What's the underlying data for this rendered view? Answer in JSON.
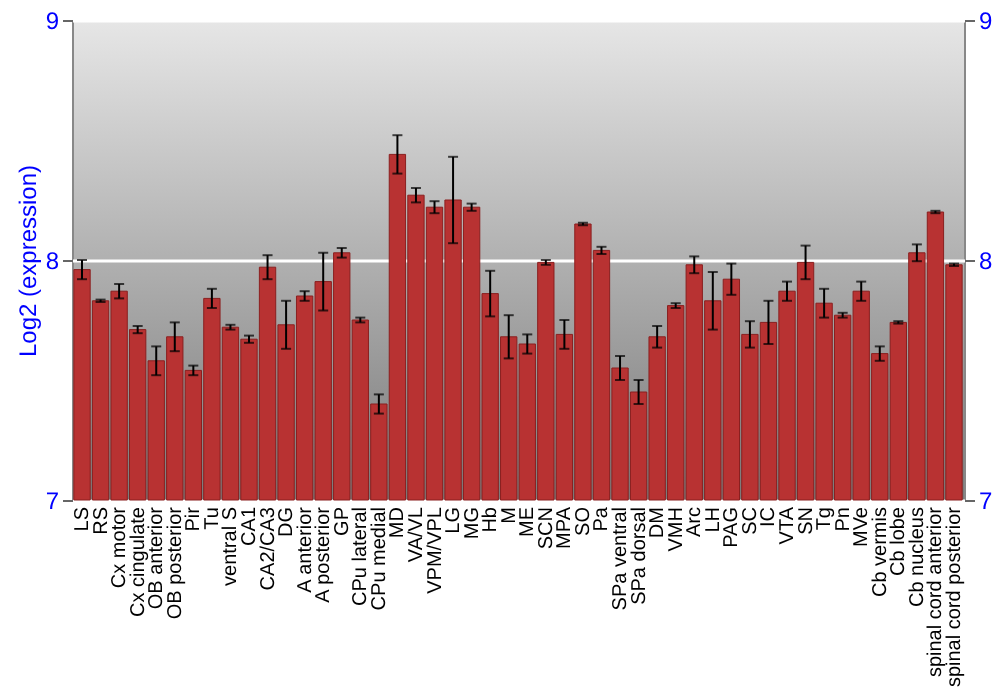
{
  "chart_data": {
    "type": "bar",
    "ylabel": "Log2 (expression)",
    "categories": [
      "LS",
      "RS",
      "Cx motor",
      "Cx cingulate",
      "OB anterior",
      "OB posterior",
      "Pir",
      "Tu",
      "ventral S",
      "CA1",
      "CA2/CA3",
      "DG",
      "A anterior",
      "A posterior",
      "GP",
      "CPu lateral",
      "CPu medial",
      "MD",
      "VA/VL",
      "VPM/VPL",
      "LG",
      "MG",
      "Hb",
      "M",
      "ME",
      "SCN",
      "MPA",
      "SO",
      "Pa",
      "SPa ventral",
      "SPa dorsal",
      "DM",
      "VMH",
      "Arc",
      "LH",
      "PAG",
      "SC",
      "IC",
      "VTA",
      "SN",
      "Tg",
      "Pn",
      "MVe",
      "Cb vermis",
      "Cb lobe",
      "Cb nucleus",
      "spinal cord anterior",
      "spinal cord posterior"
    ],
    "values": [
      7.96,
      7.83,
      7.87,
      7.71,
      7.58,
      7.68,
      7.54,
      7.84,
      7.72,
      7.67,
      7.97,
      7.73,
      7.85,
      7.91,
      8.03,
      7.75,
      7.4,
      8.44,
      8.27,
      8.22,
      8.25,
      8.22,
      7.86,
      7.68,
      7.65,
      7.99,
      7.69,
      8.15,
      8.04,
      7.55,
      7.45,
      7.68,
      7.81,
      7.98,
      7.83,
      7.92,
      7.69,
      7.74,
      7.87,
      7.99,
      7.82,
      7.77,
      7.87,
      7.61,
      7.74,
      8.03,
      8.2,
      7.98
    ],
    "errors": [
      0.04,
      0.005,
      0.03,
      0.015,
      0.06,
      0.06,
      0.02,
      0.04,
      0.01,
      0.015,
      0.05,
      0.1,
      0.02,
      0.12,
      0.02,
      0.01,
      0.04,
      0.08,
      0.03,
      0.025,
      0.18,
      0.015,
      0.095,
      0.09,
      0.04,
      0.01,
      0.06,
      0.005,
      0.015,
      0.05,
      0.05,
      0.045,
      0.01,
      0.035,
      0.12,
      0.065,
      0.055,
      0.09,
      0.04,
      0.07,
      0.06,
      0.01,
      0.04,
      0.03,
      0.005,
      0.035,
      0.005,
      0.005
    ],
    "color": "#b83232",
    "ylim": [
      7,
      9
    ],
    "yticks": [
      7,
      8,
      9
    ],
    "y2lim": [
      7,
      9
    ],
    "y2ticks": [
      7,
      8,
      9
    ],
    "grid": "y"
  }
}
